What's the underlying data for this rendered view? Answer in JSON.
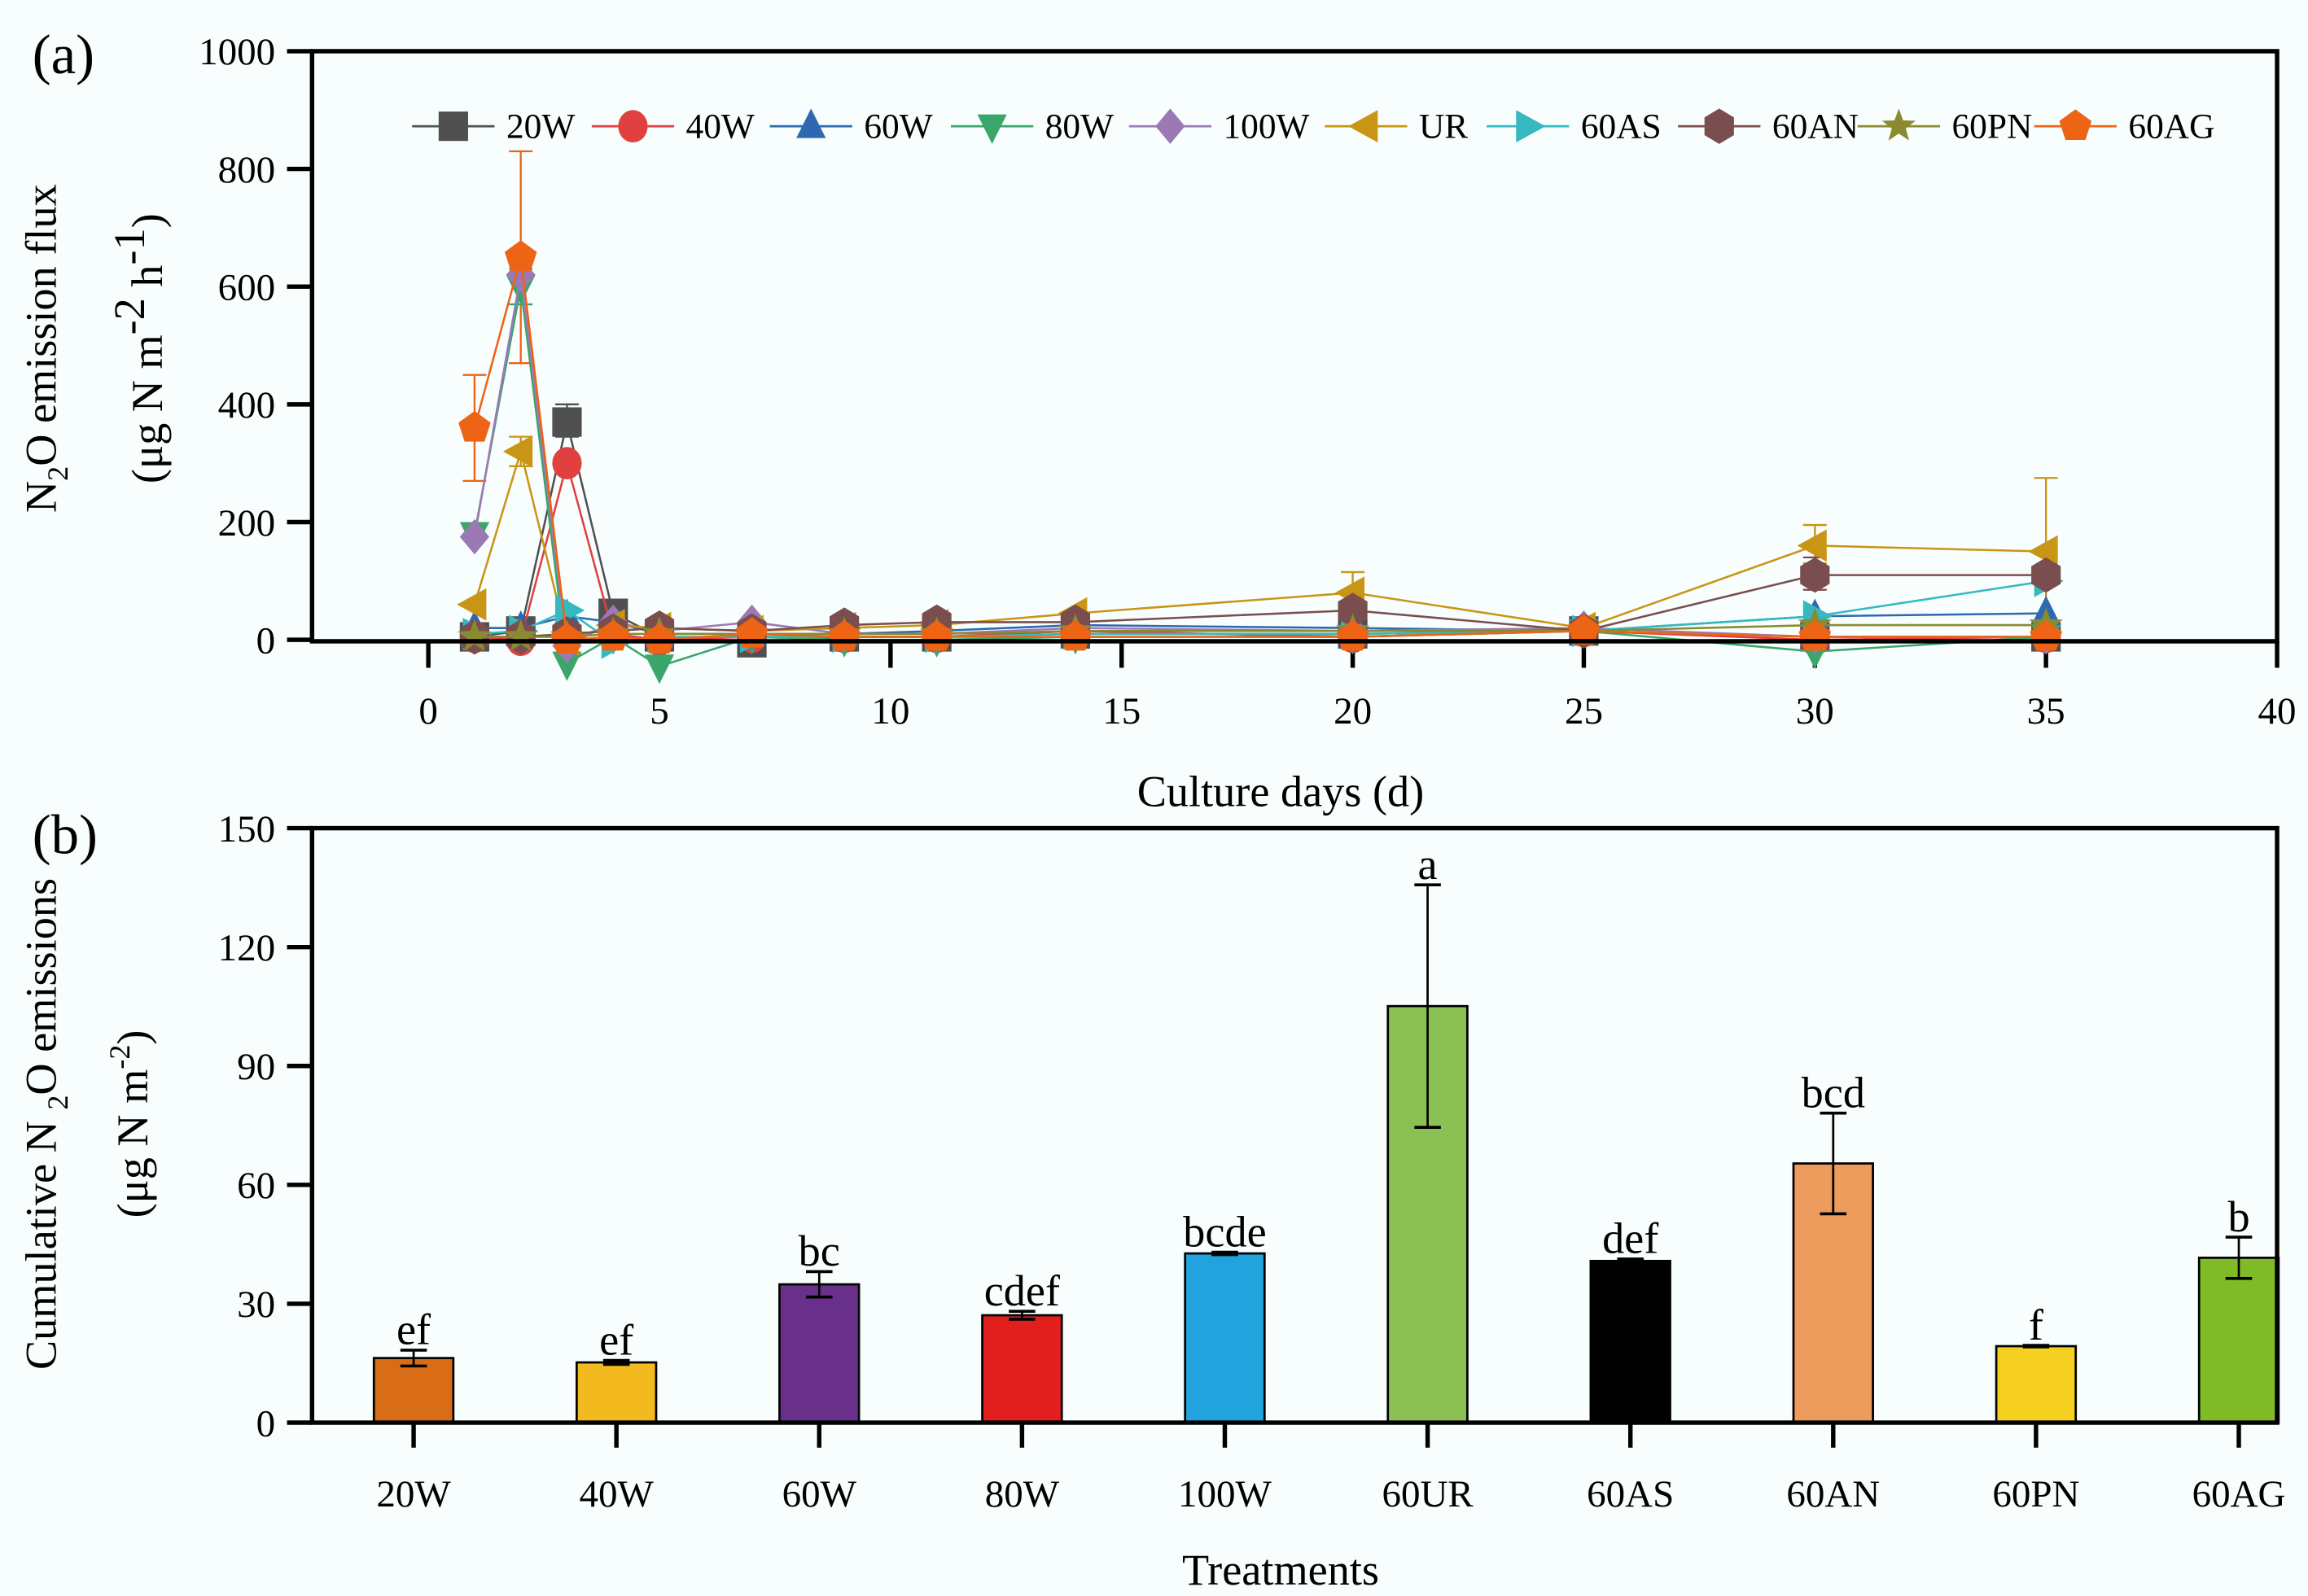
{
  "chart_data": [
    {
      "panel": "(a)",
      "type": "line",
      "title": "",
      "xlabel": "Culture days (d)",
      "ylabel_line1": "N2O emission flux",
      "ylabel_line2": "(μg N m-2 h-1)",
      "xlim": [
        -3,
        40
      ],
      "ylim": [
        0,
        1000
      ],
      "xticks": [
        0,
        5,
        10,
        15,
        20,
        25,
        30,
        35,
        40
      ],
      "yticks": [
        0,
        200,
        400,
        600,
        800,
        1000
      ],
      "legend_position": "top",
      "x": [
        1,
        2,
        3,
        4,
        5,
        7,
        9,
        11,
        14,
        20,
        25,
        30,
        35
      ],
      "series": [
        {
          "name": "20W",
          "color": "#505050",
          "marker": "square",
          "values": [
            5,
            15,
            370,
            45,
            5,
            -5,
            5,
            5,
            10,
            10,
            15,
            5,
            5
          ]
        },
        {
          "name": "40W",
          "color": "#e04040",
          "marker": "circle",
          "values": [
            5,
            0,
            300,
            10,
            0,
            5,
            5,
            5,
            15,
            5,
            15,
            0,
            5
          ]
        },
        {
          "name": "60W",
          "color": "#2e68b0",
          "marker": "triangle-up",
          "values": [
            20,
            20,
            40,
            30,
            10,
            10,
            10,
            15,
            25,
            20,
            15,
            40,
            45
          ]
        },
        {
          "name": "80W",
          "color": "#3aa66a",
          "marker": "triangle-down",
          "values": [
            180,
            600,
            -40,
            5,
            -45,
            5,
            0,
            0,
            5,
            5,
            15,
            -20,
            5
          ]
        },
        {
          "name": "100W",
          "color": "#9b79b5",
          "marker": "diamond",
          "values": [
            175,
            620,
            -10,
            30,
            15,
            30,
            10,
            10,
            20,
            15,
            20,
            5,
            5
          ]
        },
        {
          "name": "UR",
          "color": "#c99514",
          "marker": "triangle-left",
          "values": [
            60,
            320,
            0,
            25,
            20,
            15,
            20,
            25,
            45,
            80,
            20,
            160,
            150
          ]
        },
        {
          "name": "60AS",
          "color": "#36b8c0",
          "marker": "triangle-right",
          "values": [
            10,
            15,
            50,
            -5,
            5,
            5,
            5,
            5,
            10,
            10,
            15,
            40,
            100
          ]
        },
        {
          "name": "60AN",
          "color": "#7a4e4e",
          "marker": "hexagon",
          "values": [
            5,
            5,
            10,
            15,
            20,
            15,
            25,
            30,
            30,
            50,
            15,
            110,
            110
          ]
        },
        {
          "name": "60PN",
          "color": "#8a8a30",
          "marker": "star",
          "values": [
            5,
            5,
            5,
            10,
            10,
            10,
            10,
            10,
            15,
            15,
            15,
            25,
            25
          ]
        },
        {
          "name": "60AG",
          "color": "#ec6414",
          "marker": "pentagon",
          "values": [
            360,
            650,
            0,
            5,
            0,
            10,
            5,
            5,
            5,
            5,
            15,
            5,
            5
          ]
        }
      ],
      "error_bars": [
        {
          "series": "60AG",
          "x": 1,
          "low": 270,
          "high": 450
        },
        {
          "series": "60AG",
          "x": 2,
          "low": 470,
          "high": 830
        },
        {
          "series": "80W",
          "x": 2,
          "low": 570,
          "high": 630
        },
        {
          "series": "UR",
          "x": 2,
          "low": 295,
          "high": 345
        },
        {
          "series": "20W",
          "x": 3,
          "low": 345,
          "high": 400
        },
        {
          "series": "UR",
          "x": 20,
          "low": 60,
          "high": 115
        },
        {
          "series": "UR",
          "x": 30,
          "low": 130,
          "high": 195
        },
        {
          "series": "UR",
          "x": 35,
          "low": 30,
          "high": 275
        },
        {
          "series": "60AN",
          "x": 30,
          "low": 85,
          "high": 140
        }
      ]
    },
    {
      "panel": "(b)",
      "type": "bar",
      "title": "",
      "xlabel": "Treatments",
      "ylabel_line1": "Cumulative N 2O emissions",
      "ylabel_line2": "(μg N m-2)",
      "ylim": [
        0,
        150
      ],
      "yticks": [
        0,
        30,
        60,
        90,
        120,
        150
      ],
      "categories": [
        "20W",
        "40W",
        "60W",
        "80W",
        "100W",
        "60UR",
        "60AS",
        "60AN",
        "60PN",
        "60AG"
      ],
      "values": [
        16.3,
        15.2,
        34.9,
        27.1,
        42.7,
        105.1,
        40.8,
        65.4,
        19.3,
        41.6
      ],
      "errors": [
        2.0,
        0.5,
        3.2,
        1.0,
        0.3,
        30.6,
        0.5,
        12.7,
        0.2,
        5.2
      ],
      "significance": [
        "ef",
        "ef",
        "bc",
        "cdef",
        "bcde",
        "a",
        "def",
        "bcd",
        "f",
        "b"
      ],
      "colors": [
        "#d96c17",
        "#f2ba1e",
        "#68308a",
        "#e21f1f",
        "#21a3dd",
        "#8bc152",
        "#000000",
        "#ee9b5e",
        "#f5d020",
        "#7fbb27"
      ]
    }
  ],
  "labels": {
    "panel_a": "(a)",
    "panel_b": "(b)",
    "a_xlabel": "Culture days (d)",
    "a_ylabel_main": "N",
    "a_ylabel_sub": "2",
    "a_ylabel_rest": "O emission flux",
    "a_ylabel_units": "(μg N m",
    "a_ylabel_units_sup1": "-2",
    "a_ylabel_units_h": " h",
    "a_ylabel_units_sup2": "-1",
    "a_ylabel_close": ")",
    "b_xlabel": "Treatments",
    "b_ylabel_main": "Cumulative N ",
    "b_ylabel_sub": "2",
    "b_ylabel_rest": "O emissions",
    "b_ylabel_units": "(μg N m",
    "b_ylabel_units_sup": "-2",
    "b_ylabel_close": ")"
  }
}
